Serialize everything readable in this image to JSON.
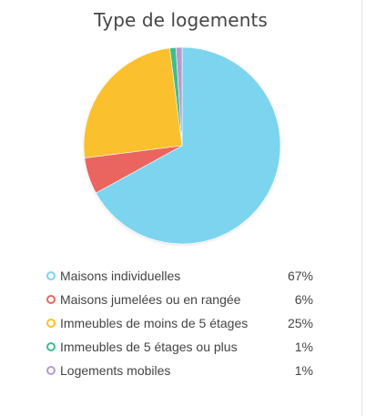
{
  "chart_data": {
    "type": "pie",
    "title": "Type de logements",
    "slices": [
      {
        "label": "Maisons individuelles",
        "value": 67,
        "value_label": "67%",
        "color": "#7dd4ef"
      },
      {
        "label": "Maisons jumelées ou en rangée",
        "value": 6,
        "value_label": "6%",
        "color": "#ea6560"
      },
      {
        "label": "Immeubles de moins de 5 étages",
        "value": 25,
        "value_label": "25%",
        "color": "#fbc02d"
      },
      {
        "label": "Immeubles de 5 étages ou plus",
        "value": 1,
        "value_label": "1%",
        "color": "#3fbd8a"
      },
      {
        "label": "Logements mobiles",
        "value": 1,
        "value_label": "1%",
        "color": "#b79ad0"
      }
    ],
    "legend_position": "bottom"
  }
}
